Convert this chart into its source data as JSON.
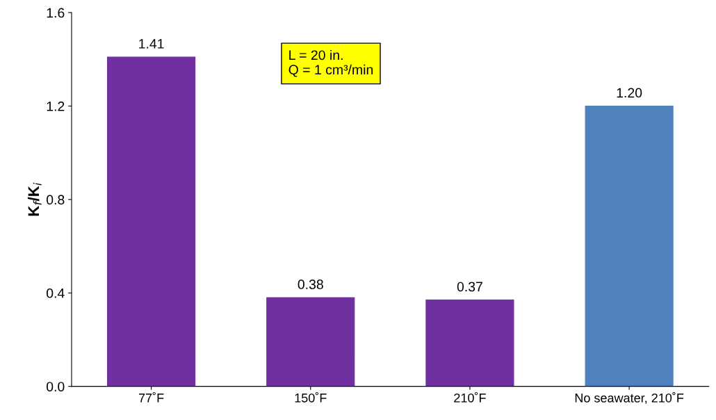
{
  "chart_data": {
    "type": "bar",
    "categories": [
      "77˚F",
      "150˚F",
      "210˚F",
      "No seawater, 210˚F"
    ],
    "values": [
      1.41,
      0.38,
      0.37,
      1.2
    ],
    "colors": [
      "#7030a0",
      "#7030a0",
      "#7030a0",
      "#4f81bd"
    ],
    "value_labels": [
      "1.41",
      "0.38",
      "0.37",
      "1.20"
    ],
    "ylabel": "K$_{f}$/K$_{i}$",
    "ylim": [
      0,
      1.6
    ],
    "yticks": [
      {
        "value": 0,
        "label": "0.0"
      },
      {
        "value": 0.4,
        "label": "0.4"
      },
      {
        "value": 0.8,
        "label": "0.8"
      },
      {
        "value": 1.2,
        "label": "1.2"
      },
      {
        "value": 1.6,
        "label": "1.6"
      }
    ],
    "annotations": [
      "L = 20 in.\nQ = 1 cm³/min"
    ],
    "grid": false,
    "legend": false
  }
}
